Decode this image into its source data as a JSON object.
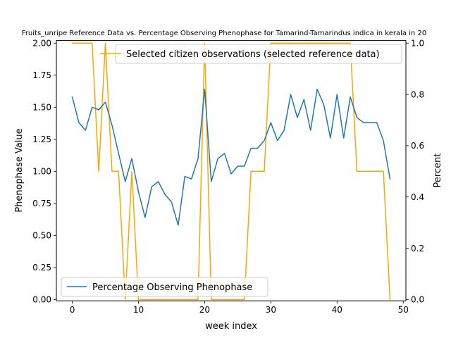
{
  "chart_data": {
    "type": "line",
    "title": "Fruits_unripe Reference Data vs. Percentage Observing Phenophase for Tamarind-Tamarindus indica in kerala in 20",
    "xlabel": "week index",
    "ylabel_left": "Phenophase Value",
    "ylabel_right": "Percent",
    "xlim": [
      -2.4,
      50.4
    ],
    "ylim_left": [
      -0.01,
      2.02
    ],
    "ylim_right": [
      -0.005,
      1.01
    ],
    "x_ticks": [
      0,
      10,
      20,
      30,
      40,
      50
    ],
    "y_ticks_left": [
      0.0,
      0.25,
      0.5,
      0.75,
      1.0,
      1.25,
      1.5,
      1.75,
      2.0
    ],
    "y_ticks_right": [
      0.0,
      0.2,
      0.4,
      0.6,
      0.8,
      1.0
    ],
    "y_tick_labels_left": [
      "0.00",
      "0.25",
      "0.50",
      "0.75",
      "1.00",
      "1.25",
      "1.50",
      "1.75",
      "2.00"
    ],
    "y_tick_labels_right": [
      "0.0",
      "0.2",
      "0.4",
      "0.6",
      "0.8",
      "1.0"
    ],
    "grid": false,
    "series": [
      {
        "name": "Selected citizen observations (selected reference data)",
        "axis": "left",
        "color": "#ffa500",
        "x": [
          0,
          1,
          2,
          3,
          4,
          5,
          6,
          7,
          8,
          9,
          10,
          11,
          12,
          13,
          14,
          15,
          16,
          17,
          18,
          19,
          20,
          21,
          22,
          23,
          24,
          25,
          26,
          27,
          28,
          29,
          30,
          31,
          32,
          33,
          34,
          35,
          36,
          37,
          38,
          39,
          40,
          41,
          42,
          43,
          44,
          45,
          46,
          47,
          48
        ],
        "values": [
          2,
          2,
          2,
          2,
          1,
          2,
          1,
          1,
          0,
          1,
          0,
          0,
          0,
          0,
          0,
          0,
          0,
          0,
          0,
          0,
          2,
          0,
          0,
          0,
          0,
          0,
          0,
          1,
          1,
          1,
          2,
          2,
          2,
          2,
          2,
          2,
          2,
          2,
          2,
          2,
          2,
          2,
          2,
          1,
          1,
          1,
          1,
          1,
          0
        ]
      },
      {
        "name": "Percentage Observing Phenophase",
        "axis": "right",
        "color": "#1f77b4",
        "x": [
          0,
          1,
          2,
          3,
          4,
          5,
          6,
          7,
          8,
          9,
          10,
          11,
          12,
          13,
          14,
          15,
          16,
          17,
          18,
          19,
          20,
          21,
          22,
          23,
          24,
          25,
          26,
          27,
          28,
          29,
          30,
          31,
          32,
          33,
          34,
          35,
          36,
          37,
          38,
          39,
          40,
          41,
          42,
          43,
          44,
          45,
          46,
          47,
          48
        ],
        "values": [
          0.79,
          0.69,
          0.66,
          0.75,
          0.74,
          0.77,
          0.68,
          0.57,
          0.46,
          0.55,
          0.42,
          0.32,
          0.44,
          0.46,
          0.41,
          0.38,
          0.29,
          0.48,
          0.47,
          0.55,
          0.82,
          0.46,
          0.55,
          0.57,
          0.49,
          0.52,
          0.52,
          0.59,
          0.59,
          0.62,
          0.69,
          0.62,
          0.66,
          0.8,
          0.71,
          0.78,
          0.66,
          0.82,
          0.76,
          0.63,
          0.8,
          0.63,
          0.79,
          0.71,
          0.69,
          0.69,
          0.69,
          0.62,
          0.47
        ]
      }
    ],
    "legends": [
      {
        "placement": "top-right",
        "series_index": 0
      },
      {
        "placement": "lower-left",
        "series_index": 1
      }
    ]
  }
}
